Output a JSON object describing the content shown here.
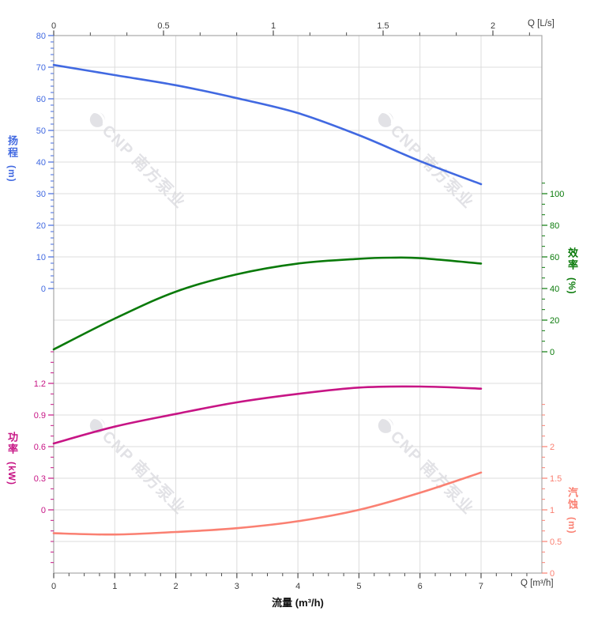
{
  "chart_data": {
    "type": "line",
    "title": "",
    "grid": true,
    "legend": "none",
    "flow_axis": {
      "title": "流量 (m³/h)",
      "unit_label": "Q [m³/h]",
      "xlim": [
        0,
        8
      ],
      "tick_values": [
        0,
        1,
        2,
        3,
        4,
        5,
        6,
        7
      ],
      "tick_labels": [
        "0",
        "1",
        "2",
        "3",
        "4",
        "5",
        "6",
        "7"
      ]
    },
    "top_axis": {
      "unit_label": "Q [L/s]",
      "xlim": [
        0,
        2.22
      ],
      "tick_values": [
        0,
        0.5,
        1,
        1.5,
        2
      ],
      "tick_labels": [
        "0",
        "0.5",
        "1",
        "1.5",
        "2"
      ]
    },
    "axes": {
      "head": {
        "label": "扬程",
        "unit": "(m)",
        "side": "left",
        "color": "#4169e1",
        "range": [
          0,
          80
        ],
        "tick_values": [
          80,
          70,
          60,
          50,
          40,
          30,
          20,
          10,
          0
        ],
        "tick_labels": [
          "80",
          "70",
          "60",
          "50",
          "40",
          "30",
          "20",
          "10",
          "0"
        ]
      },
      "efficiency": {
        "label": "效率",
        "unit": "(%)",
        "side": "right",
        "color": "#0a7a0a",
        "range": [
          0,
          100
        ],
        "tick_values": [
          100,
          80,
          60,
          40,
          20,
          0
        ],
        "tick_labels": [
          "100",
          "80",
          "60",
          "40",
          "20",
          "0"
        ]
      },
      "power": {
        "label": "功率",
        "unit": "(kW)",
        "side": "left",
        "color": "#c71585",
        "range": [
          0,
          1.2
        ],
        "tick_values": [
          1.2,
          0.9,
          0.6,
          0.3,
          0
        ],
        "tick_labels": [
          "1.2",
          "0.9",
          "0.6",
          "0.3",
          "0"
        ]
      },
      "npsh": {
        "label": "汽蚀",
        "unit": "(m)",
        "side": "right",
        "color": "#fa8072",
        "range": [
          0,
          2
        ],
        "tick_values": [
          2,
          1.5,
          1,
          0.5,
          0
        ],
        "tick_labels": [
          "2",
          "1.5",
          "1",
          "0.5",
          "0"
        ]
      }
    },
    "series": [
      {
        "name": "head",
        "axis": "head",
        "color": "#4169e1",
        "points": [
          [
            0,
            70.7
          ],
          [
            1,
            67.5
          ],
          [
            2,
            64.3
          ],
          [
            3,
            60.2
          ],
          [
            4,
            55.5
          ],
          [
            5,
            48.5
          ],
          [
            6,
            40.3
          ],
          [
            7,
            33.0
          ]
        ]
      },
      {
        "name": "efficiency",
        "axis": "efficiency",
        "color": "#0a7a0a",
        "points": [
          [
            0,
            1.5
          ],
          [
            1,
            21.0
          ],
          [
            2,
            38.0
          ],
          [
            3,
            49.0
          ],
          [
            4,
            55.8
          ],
          [
            5,
            58.8
          ],
          [
            5.5,
            59.5
          ],
          [
            6,
            59.2
          ],
          [
            7,
            55.8
          ]
        ]
      },
      {
        "name": "power",
        "axis": "power",
        "color": "#c71585",
        "points": [
          [
            0,
            0.63
          ],
          [
            1,
            0.79
          ],
          [
            2,
            0.91
          ],
          [
            3,
            1.02
          ],
          [
            4,
            1.1
          ],
          [
            5,
            1.16
          ],
          [
            6,
            1.17
          ],
          [
            7,
            1.15
          ]
        ]
      },
      {
        "name": "npsh",
        "axis": "npsh",
        "color": "#fa8072",
        "points": [
          [
            0,
            0.63
          ],
          [
            1,
            0.61
          ],
          [
            2,
            0.65
          ],
          [
            3,
            0.71
          ],
          [
            4,
            0.82
          ],
          [
            5,
            1.0
          ],
          [
            6,
            1.27
          ],
          [
            7,
            1.59
          ]
        ]
      }
    ]
  },
  "watermark": {
    "text": "CNP 南方泵业",
    "color": "#e2e2e6"
  }
}
